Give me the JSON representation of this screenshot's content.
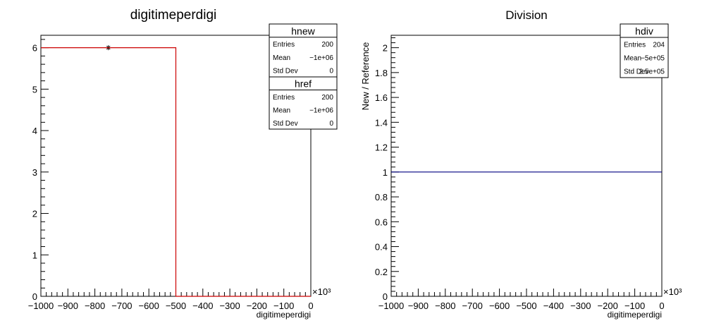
{
  "chart_data": [
    {
      "type": "histogram",
      "title": "digitimeperdigi",
      "xlabel": "digitimeperdigi",
      "ylabel": "",
      "x_multiplier": "×10³",
      "xlim": [
        -1000,
        0
      ],
      "ylim": [
        0,
        6.3
      ],
      "x_ticks": [
        "−1000",
        "−900",
        "−800",
        "−700",
        "−600",
        "−500",
        "−400",
        "−300",
        "−200",
        "−100",
        "0"
      ],
      "y_ticks": [
        "0",
        "1",
        "2",
        "3",
        "4",
        "5",
        "6"
      ],
      "series": [
        {
          "name": "hnew",
          "color": "#000000",
          "marker": "star",
          "points": [
            {
              "x": -750,
              "y": 6
            }
          ]
        },
        {
          "name": "href",
          "color": "#cc0000",
          "style": "step",
          "steps": [
            {
              "x0": -1000,
              "x1": -500,
              "y": 6
            },
            {
              "x0": -500,
              "x1": 0,
              "y": 0
            }
          ]
        }
      ],
      "stats": [
        {
          "title": "hnew",
          "rows": [
            [
              "Entries",
              "200"
            ],
            [
              "Mean",
              "−1e+06"
            ],
            [
              "Std Dev",
              "0"
            ]
          ]
        },
        {
          "title": "href",
          "rows": [
            [
              "Entries",
              "200"
            ],
            [
              "Mean",
              "−1e+06"
            ],
            [
              "Std Dev",
              "0"
            ]
          ]
        }
      ]
    },
    {
      "type": "histogram",
      "title": "Division",
      "xlabel": "digitimeperdigi",
      "ylabel": "New / Reference",
      "x_multiplier": "×10³",
      "xlim": [
        -1000,
        0
      ],
      "ylim": [
        0,
        2.1
      ],
      "x_ticks": [
        "−1000",
        "−900",
        "−800",
        "−700",
        "−600",
        "−500",
        "−400",
        "−300",
        "−200",
        "−100",
        "0"
      ],
      "y_ticks": [
        "0",
        "0.2",
        "0.4",
        "0.6",
        "0.8",
        "1",
        "1.2",
        "1.4",
        "1.6",
        "1.8",
        "2"
      ],
      "series": [
        {
          "name": "hdiv",
          "color": "#000080",
          "style": "step",
          "steps": [
            {
              "x0": -1000,
              "x1": 0,
              "y": 1
            }
          ]
        }
      ],
      "stats": [
        {
          "title": "hdiv",
          "rows": [
            [
              "Entries",
              "204"
            ],
            [
              "Mean",
              "−5e+05"
            ],
            [
              "Std Dev",
              "2.5e+05"
            ]
          ]
        }
      ]
    }
  ]
}
